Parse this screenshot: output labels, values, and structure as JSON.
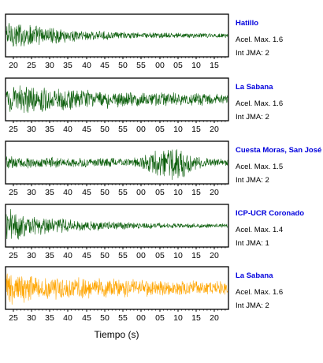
{
  "chart_data": {
    "type": "line",
    "xlabel": "Tiempo (s)",
    "colors": {
      "default": "#0b5e0b",
      "highlight": "#ffa500",
      "label": "#0000dd"
    },
    "panels": [
      {
        "station": "Hatillo",
        "acel_max": "Acel. Max. 1.6",
        "int_jma": "Int JMA: 2",
        "color": "#0b5e0b",
        "x_tick_labels": [
          "20",
          "25",
          "30",
          "35",
          "40",
          "45",
          "50",
          "55",
          "00",
          "05",
          "10",
          "15"
        ],
        "envelope": {
          "onset_fraction": 0.0,
          "peak": 0.95,
          "decay": 4.5,
          "floor": 0.12,
          "burst": null
        }
      },
      {
        "station": "La Sabana",
        "acel_max": "Acel. Max. 1.6",
        "int_jma": "Int JMA: 2",
        "color": "#0b5e0b",
        "x_tick_labels": [
          "25",
          "30",
          "35",
          "40",
          "45",
          "50",
          "55",
          "00",
          "05",
          "10",
          "15",
          "20"
        ],
        "envelope": {
          "onset_fraction": 0.0,
          "peak": 0.85,
          "decay": 2.2,
          "floor": 0.25,
          "burst": null
        }
      },
      {
        "station": "Cuesta Moras, San José",
        "acel_max": "Acel. Max. 1.5",
        "int_jma": "Int JMA: 2",
        "color": "#0b5e0b",
        "x_tick_labels": [
          "25",
          "30",
          "35",
          "40",
          "45",
          "50",
          "55",
          "00",
          "05",
          "10",
          "15",
          "20"
        ],
        "envelope": {
          "onset_fraction": 0.0,
          "peak": 0.35,
          "decay": 1.5,
          "floor": 0.15,
          "burst": {
            "center": 0.74,
            "width": 0.09,
            "amp": 0.95
          }
        }
      },
      {
        "station": "ICP-UCR Coronado",
        "acel_max": "Acel. Max. 1.4",
        "int_jma": "Int JMA: 1",
        "color": "#0b5e0b",
        "x_tick_labels": [
          "25",
          "30",
          "35",
          "40",
          "45",
          "50",
          "55",
          "00",
          "05",
          "10",
          "15",
          "20"
        ],
        "envelope": {
          "onset_fraction": 0.0,
          "peak": 0.95,
          "decay": 4.0,
          "floor": 0.1,
          "burst": null
        }
      },
      {
        "station": "La Sabana",
        "acel_max": "Acel. Max. 1.6",
        "int_jma": "Int JMA: 2",
        "color": "#ffa500",
        "x_tick_labels": [
          "25",
          "30",
          "35",
          "40",
          "45",
          "50",
          "55",
          "00",
          "05",
          "10",
          "15",
          "20"
        ],
        "envelope": {
          "onset_fraction": 0.0,
          "peak": 0.95,
          "decay": 2.2,
          "floor": 0.3,
          "burst": null
        }
      }
    ]
  }
}
